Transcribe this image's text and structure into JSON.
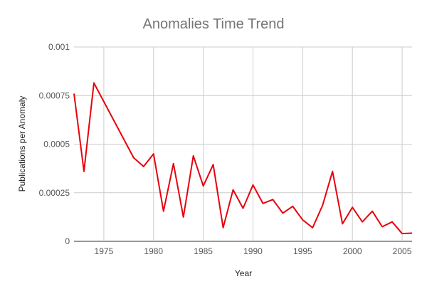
{
  "chart_data": {
    "type": "line",
    "title": "Anomalies Time Trend",
    "xlabel": "Year",
    "ylabel": "Publications per Anomaly",
    "xlim": [
      1972,
      2006
    ],
    "ylim": [
      0,
      0.001
    ],
    "x_ticks": [
      1975,
      1980,
      1985,
      1990,
      1995,
      2000,
      2005
    ],
    "y_ticks": [
      {
        "value": 0,
        "label": "0"
      },
      {
        "value": 0.00025,
        "label": "0.00025"
      },
      {
        "value": 0.0005,
        "label": "0.0005"
      },
      {
        "value": 0.00075,
        "label": "0.00075"
      },
      {
        "value": 0.001,
        "label": "0.001"
      }
    ],
    "grid": true,
    "legend": "none",
    "series": [
      {
        "color": "#e8000b",
        "points": [
          [
            1972,
            0.00076
          ],
          [
            1973,
            0.00036
          ],
          [
            1974,
            0.000815
          ],
          [
            1978,
            0.00043
          ],
          [
            1979,
            0.000385
          ],
          [
            1980,
            0.00045
          ],
          [
            1981,
            0.000155
          ],
          [
            1982,
            0.0004
          ],
          [
            1983,
            0.000125
          ],
          [
            1984,
            0.00044
          ],
          [
            1985,
            0.000285
          ],
          [
            1986,
            0.000395
          ],
          [
            1987,
            7e-05
          ],
          [
            1988,
            0.000265
          ],
          [
            1989,
            0.00017
          ],
          [
            1990,
            0.00029
          ],
          [
            1991,
            0.000195
          ],
          [
            1992,
            0.000215
          ],
          [
            1993,
            0.000145
          ],
          [
            1994,
            0.00018
          ],
          [
            1995,
            0.00011
          ],
          [
            1996,
            7e-05
          ],
          [
            1997,
            0.000185
          ],
          [
            1998,
            0.00036
          ],
          [
            1999,
            9e-05
          ],
          [
            2000,
            0.000175
          ],
          [
            2001,
            0.0001
          ],
          [
            2002,
            0.000155
          ],
          [
            2003,
            7.5e-05
          ],
          [
            2004,
            0.0001
          ],
          [
            2005,
            4e-05
          ],
          [
            2006,
            4.2e-05
          ]
        ]
      }
    ]
  }
}
